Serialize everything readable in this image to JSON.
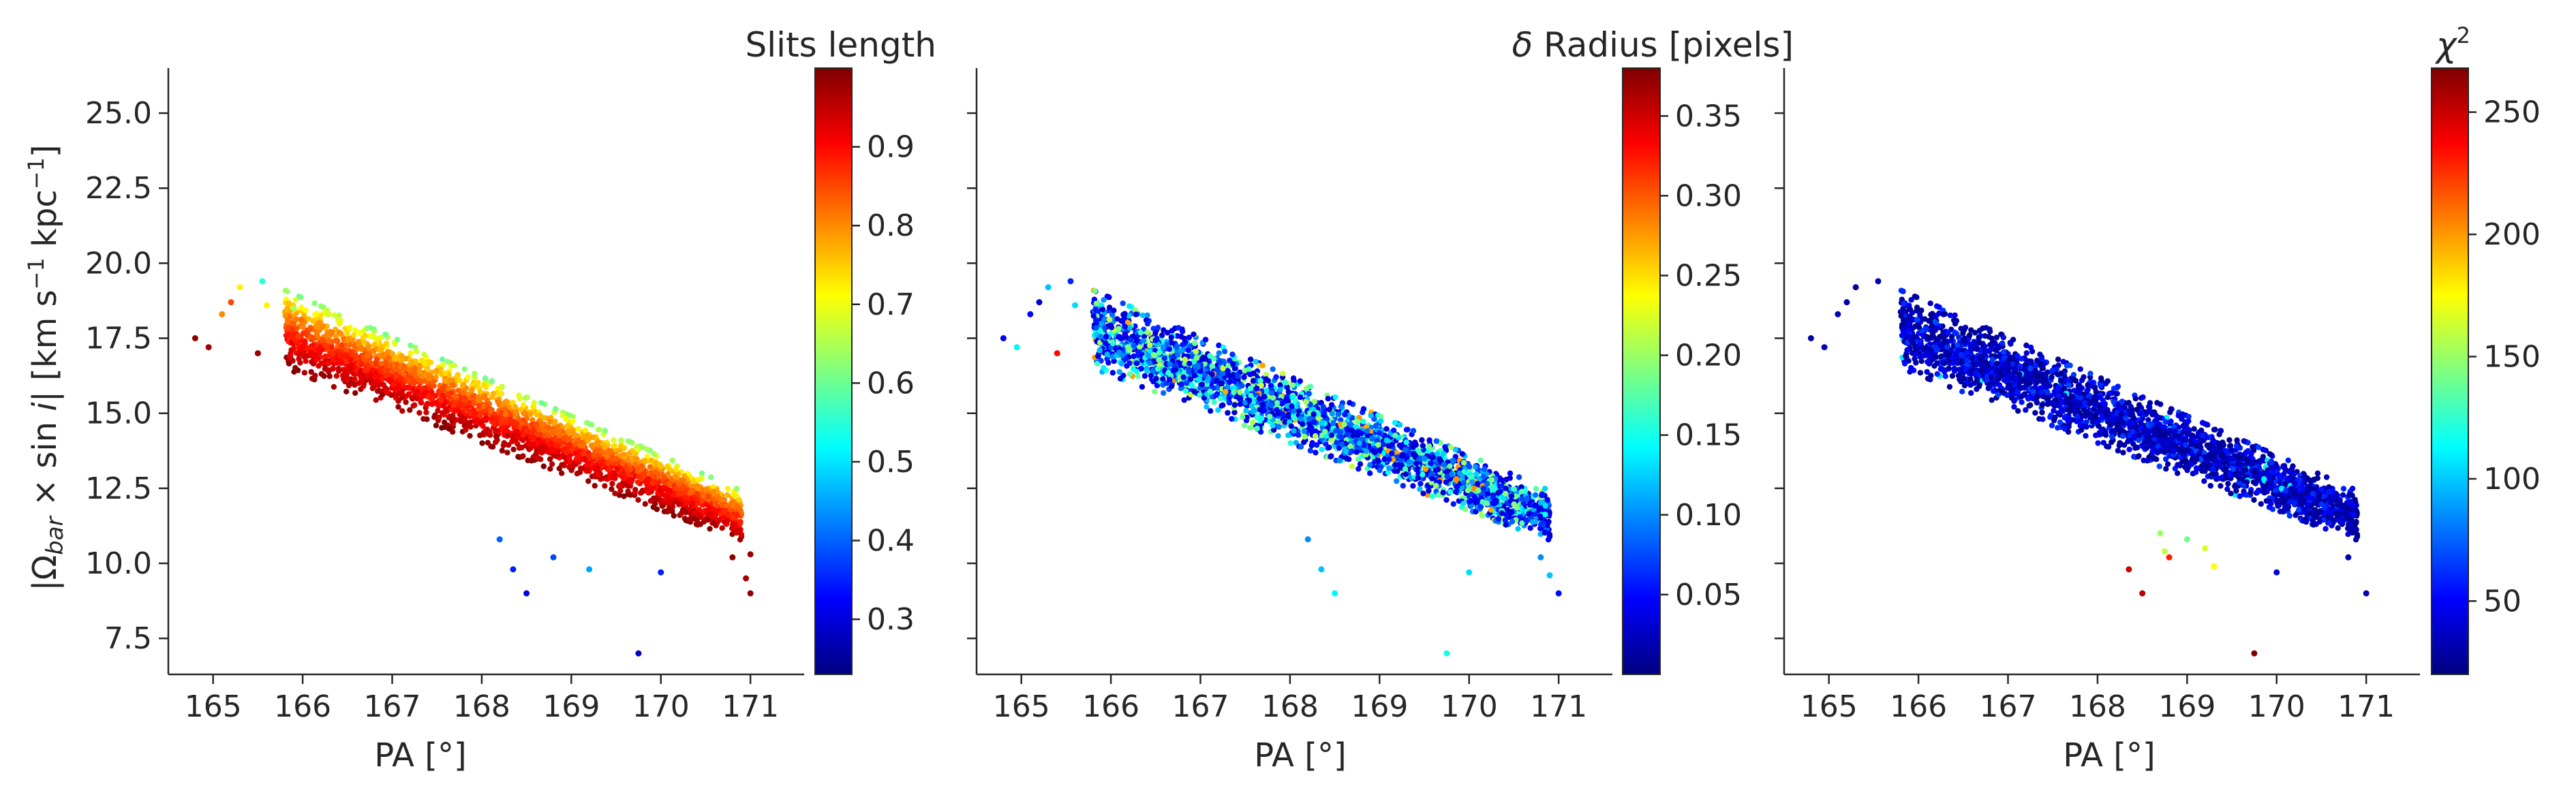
{
  "chart_data": [
    {
      "type": "scatter",
      "panel": "left",
      "title": "",
      "colorbar_label": "Slits length",
      "xlabel": "PA [°]",
      "ylabel": "|Ω_bar × sin i|  [km s⁻¹ kpc⁻¹]",
      "ylabel_parts": {
        "abs_open": "|Ω",
        "sub": "bar",
        "times": " × sin ",
        "i": "i",
        "abs_close": "|   [km s",
        "unit_exp1": "−1",
        "mid": " kpc",
        "unit_exp2": "−1",
        "end": "]"
      },
      "xlim": [
        164.5,
        171.6
      ],
      "ylim": [
        6.3,
        26.5
      ],
      "xticks": [
        "165",
        "166",
        "167",
        "168",
        "169",
        "170",
        "171"
      ],
      "yticks": [
        "7.5",
        "10.0",
        "12.5",
        "15.0",
        "17.5",
        "20.0",
        "22.5",
        "25.0"
      ],
      "colormap": "jet",
      "clim": [
        0.23,
        1.0
      ],
      "cbar_ticks": [
        "0.3",
        "0.4",
        "0.5",
        "0.6",
        "0.7",
        "0.8",
        "0.9"
      ],
      "band": {
        "x_range": [
          165.8,
          170.9
        ],
        "y_at_x0": 17.8,
        "slope": -1.22,
        "half_width": 1.3
      },
      "outliers": [
        {
          "x": 164.8,
          "y": 17.5,
          "c": 0.99
        },
        {
          "x": 164.95,
          "y": 17.2,
          "c": 0.98
        },
        {
          "x": 165.1,
          "y": 18.3,
          "c": 0.8
        },
        {
          "x": 165.2,
          "y": 18.7,
          "c": 0.85
        },
        {
          "x": 165.3,
          "y": 19.2,
          "c": 0.72
        },
        {
          "x": 165.55,
          "y": 19.4,
          "c": 0.55
        },
        {
          "x": 165.6,
          "y": 18.6,
          "c": 0.72
        },
        {
          "x": 165.5,
          "y": 17.0,
          "c": 0.98
        },
        {
          "x": 165.9,
          "y": 18.5,
          "c": 0.65
        },
        {
          "x": 168.5,
          "y": 9.0,
          "c": 0.3
        },
        {
          "x": 168.35,
          "y": 9.8,
          "c": 0.35
        },
        {
          "x": 168.2,
          "y": 10.8,
          "c": 0.4
        },
        {
          "x": 168.8,
          "y": 10.2,
          "c": 0.38
        },
        {
          "x": 169.2,
          "y": 9.8,
          "c": 0.45
        },
        {
          "x": 169.75,
          "y": 7.0,
          "c": 0.28
        },
        {
          "x": 170.0,
          "y": 9.7,
          "c": 0.35
        },
        {
          "x": 170.8,
          "y": 10.2,
          "c": 0.99
        },
        {
          "x": 171.0,
          "y": 10.3,
          "c": 0.98
        },
        {
          "x": 171.0,
          "y": 9.0,
          "c": 0.99
        },
        {
          "x": 170.95,
          "y": 9.5,
          "c": 0.97
        }
      ]
    },
    {
      "type": "scatter",
      "panel": "middle",
      "title": "",
      "colorbar_label": "δ Radius [pixels]",
      "colorbar_label_parts": {
        "delta": "δ",
        "rest": " Radius [pixels]"
      },
      "xlabel": "PA [°]",
      "xlim": [
        164.5,
        171.6
      ],
      "ylim": [
        6.3,
        26.5
      ],
      "xticks": [
        "165",
        "166",
        "167",
        "168",
        "169",
        "170",
        "171"
      ],
      "colormap": "jet",
      "clim": [
        0.0,
        0.38
      ],
      "cbar_ticks": [
        "0.05",
        "0.10",
        "0.15",
        "0.20",
        "0.25",
        "0.30",
        "0.35"
      ],
      "band": {
        "x_range": [
          165.8,
          170.9
        ],
        "y_at_x0": 17.8,
        "slope": -1.22,
        "half_width": 1.3
      },
      "outliers": [
        {
          "x": 164.8,
          "y": 17.5,
          "c": 0.04
        },
        {
          "x": 164.95,
          "y": 17.2,
          "c": 0.14
        },
        {
          "x": 165.1,
          "y": 18.3,
          "c": 0.05
        },
        {
          "x": 165.2,
          "y": 18.7,
          "c": 0.03
        },
        {
          "x": 165.3,
          "y": 19.2,
          "c": 0.12
        },
        {
          "x": 165.55,
          "y": 19.4,
          "c": 0.06
        },
        {
          "x": 165.6,
          "y": 18.6,
          "c": 0.13
        },
        {
          "x": 165.4,
          "y": 17.0,
          "c": 0.33
        },
        {
          "x": 168.5,
          "y": 9.0,
          "c": 0.14
        },
        {
          "x": 168.35,
          "y": 9.8,
          "c": 0.12
        },
        {
          "x": 168.2,
          "y": 10.8,
          "c": 0.1
        },
        {
          "x": 169.75,
          "y": 7.0,
          "c": 0.15
        },
        {
          "x": 170.0,
          "y": 9.7,
          "c": 0.13
        },
        {
          "x": 170.8,
          "y": 10.2,
          "c": 0.1
        },
        {
          "x": 171.0,
          "y": 9.0,
          "c": 0.05
        },
        {
          "x": 170.9,
          "y": 9.6,
          "c": 0.12
        }
      ]
    },
    {
      "type": "scatter",
      "panel": "right",
      "title": "",
      "colorbar_label": "χ²",
      "colorbar_label_parts": {
        "chi": "χ",
        "exp": "2"
      },
      "xlabel": "PA [°]",
      "xlim": [
        164.5,
        171.6
      ],
      "ylim": [
        6.3,
        26.5
      ],
      "xticks": [
        "165",
        "166",
        "167",
        "168",
        "169",
        "170",
        "171"
      ],
      "colormap": "jet",
      "clim": [
        20,
        268
      ],
      "cbar_ticks": [
        "50",
        "100",
        "150",
        "200",
        "250"
      ],
      "band": {
        "x_range": [
          165.8,
          170.9
        ],
        "y_at_x0": 17.8,
        "slope": -1.22,
        "half_width": 1.3
      },
      "outliers": [
        {
          "x": 164.8,
          "y": 17.5,
          "c": 30
        },
        {
          "x": 164.95,
          "y": 17.2,
          "c": 32
        },
        {
          "x": 165.1,
          "y": 18.3,
          "c": 35
        },
        {
          "x": 165.2,
          "y": 18.7,
          "c": 30
        },
        {
          "x": 165.3,
          "y": 19.2,
          "c": 28
        },
        {
          "x": 165.55,
          "y": 19.4,
          "c": 30
        },
        {
          "x": 168.5,
          "y": 9.0,
          "c": 255
        },
        {
          "x": 168.35,
          "y": 9.8,
          "c": 250
        },
        {
          "x": 168.7,
          "y": 11.0,
          "c": 150
        },
        {
          "x": 168.8,
          "y": 10.2,
          "c": 230
        },
        {
          "x": 168.75,
          "y": 10.4,
          "c": 160
        },
        {
          "x": 169.2,
          "y": 10.5,
          "c": 165
        },
        {
          "x": 169.3,
          "y": 9.9,
          "c": 175
        },
        {
          "x": 169.0,
          "y": 10.8,
          "c": 140
        },
        {
          "x": 169.75,
          "y": 7.0,
          "c": 268
        },
        {
          "x": 170.0,
          "y": 9.7,
          "c": 40
        },
        {
          "x": 170.8,
          "y": 10.2,
          "c": 30
        },
        {
          "x": 171.0,
          "y": 9.0,
          "c": 32
        }
      ]
    }
  ]
}
